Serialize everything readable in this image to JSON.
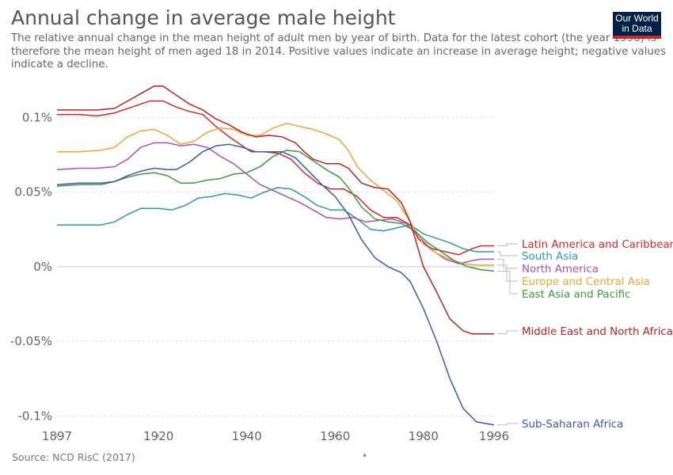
{
  "header": {
    "title": "Annual change in average male height",
    "subtitle": "The relative annual change in the mean height of adult men by year of birth. Data for the latest cohort (the year 1996) is therefore the mean height of men aged 18 in 2014. Positive values indicate an increase in average height; negative values indicate a decline.",
    "logo_text_1": "Our World",
    "logo_text_2": "in Data"
  },
  "footer": {
    "source": "Source: NCD RisC (2017)",
    "dot": "•"
  },
  "colors": {
    "logo_bg": "#002147",
    "logo_accent": "#ce261e"
  },
  "chart_data": {
    "type": "line",
    "title": "Annual change in average male height",
    "xlabel": "",
    "ylabel": "",
    "xlim": [
      1897,
      1996
    ],
    "ylim": [
      -0.112,
      0.123
    ],
    "x_ticks": [
      1897,
      1920,
      1940,
      1960,
      1980,
      1996
    ],
    "y_ticks": [
      {
        "value": 0.1,
        "label": "0.1%"
      },
      {
        "value": 0.05,
        "label": "0.05%"
      },
      {
        "value": 0,
        "label": "0%"
      },
      {
        "value": -0.05,
        "label": "-0.05%"
      },
      {
        "value": -0.1,
        "label": "-0.1%"
      }
    ],
    "grid": true,
    "legend": "right, direct labels",
    "series": [
      {
        "name": "Latin America and Caribbean",
        "color": "#d62728",
        "points": [
          [
            1897,
            0.102
          ],
          [
            1902,
            0.102
          ],
          [
            1906,
            0.101
          ],
          [
            1910,
            0.103
          ],
          [
            1915,
            0.108
          ],
          [
            1918,
            0.111
          ],
          [
            1921,
            0.111
          ],
          [
            1924,
            0.107
          ],
          [
            1927,
            0.104
          ],
          [
            1930,
            0.102
          ],
          [
            1933,
            0.094
          ],
          [
            1936,
            0.087
          ],
          [
            1939,
            0.081
          ],
          [
            1941,
            0.077
          ],
          [
            1944,
            0.077
          ],
          [
            1947,
            0.076
          ],
          [
            1950,
            0.072
          ],
          [
            1953,
            0.063
          ],
          [
            1956,
            0.056
          ],
          [
            1959,
            0.052
          ],
          [
            1962,
            0.052
          ],
          [
            1965,
            0.047
          ],
          [
            1968,
            0.038
          ],
          [
            1971,
            0.033
          ],
          [
            1974,
            0.033
          ],
          [
            1977,
            0.028
          ],
          [
            1979,
            0.018
          ],
          [
            1982,
            0.012
          ],
          [
            1985,
            0.01
          ],
          [
            1988,
            0.008
          ],
          [
            1991,
            0.012
          ],
          [
            1993,
            0.014
          ],
          [
            1996,
            0.014
          ]
        ]
      },
      {
        "name": "South Asia",
        "color": "#2a9d97",
        "points": [
          [
            1897,
            0.028
          ],
          [
            1902,
            0.028
          ],
          [
            1907,
            0.028
          ],
          [
            1910,
            0.03
          ],
          [
            1913,
            0.035
          ],
          [
            1916,
            0.039
          ],
          [
            1920,
            0.039
          ],
          [
            1923,
            0.038
          ],
          [
            1926,
            0.041
          ],
          [
            1929,
            0.046
          ],
          [
            1932,
            0.047
          ],
          [
            1935,
            0.049
          ],
          [
            1938,
            0.048
          ],
          [
            1941,
            0.046
          ],
          [
            1944,
            0.05
          ],
          [
            1947,
            0.053
          ],
          [
            1950,
            0.052
          ],
          [
            1953,
            0.047
          ],
          [
            1956,
            0.041
          ],
          [
            1959,
            0.038
          ],
          [
            1962,
            0.038
          ],
          [
            1965,
            0.032
          ],
          [
            1968,
            0.025
          ],
          [
            1971,
            0.024
          ],
          [
            1974,
            0.026
          ],
          [
            1977,
            0.028
          ],
          [
            1980,
            0.022
          ],
          [
            1983,
            0.019
          ],
          [
            1986,
            0.016
          ],
          [
            1989,
            0.012
          ],
          [
            1992,
            0.01
          ],
          [
            1996,
            0.01
          ]
        ]
      },
      {
        "name": "North America",
        "color": "#a652ba",
        "points": [
          [
            1897,
            0.065
          ],
          [
            1902,
            0.066
          ],
          [
            1906,
            0.066
          ],
          [
            1910,
            0.067
          ],
          [
            1913,
            0.072
          ],
          [
            1916,
            0.08
          ],
          [
            1919,
            0.083
          ],
          [
            1922,
            0.083
          ],
          [
            1925,
            0.081
          ],
          [
            1928,
            0.082
          ],
          [
            1931,
            0.08
          ],
          [
            1934,
            0.074
          ],
          [
            1937,
            0.069
          ],
          [
            1940,
            0.062
          ],
          [
            1943,
            0.055
          ],
          [
            1946,
            0.051
          ],
          [
            1949,
            0.047
          ],
          [
            1952,
            0.043
          ],
          [
            1955,
            0.038
          ],
          [
            1958,
            0.033
          ],
          [
            1961,
            0.032
          ],
          [
            1964,
            0.033
          ],
          [
            1967,
            0.03
          ],
          [
            1970,
            0.031
          ],
          [
            1973,
            0.032
          ],
          [
            1976,
            0.029
          ],
          [
            1979,
            0.02
          ],
          [
            1982,
            0.011
          ],
          [
            1985,
            0.005
          ],
          [
            1988,
            0.002
          ],
          [
            1991,
            0.004
          ],
          [
            1993,
            0.005
          ],
          [
            1996,
            0.005
          ]
        ]
      },
      {
        "name": "Europe and Central Asia",
        "color": "#f0a32f",
        "points": [
          [
            1897,
            0.077
          ],
          [
            1902,
            0.077
          ],
          [
            1907,
            0.078
          ],
          [
            1910,
            0.08
          ],
          [
            1913,
            0.087
          ],
          [
            1916,
            0.091
          ],
          [
            1919,
            0.092
          ],
          [
            1922,
            0.088
          ],
          [
            1925,
            0.082
          ],
          [
            1928,
            0.084
          ],
          [
            1931,
            0.09
          ],
          [
            1934,
            0.093
          ],
          [
            1937,
            0.092
          ],
          [
            1940,
            0.088
          ],
          [
            1943,
            0.088
          ],
          [
            1946,
            0.093
          ],
          [
            1949,
            0.096
          ],
          [
            1952,
            0.094
          ],
          [
            1955,
            0.092
          ],
          [
            1958,
            0.089
          ],
          [
            1961,
            0.085
          ],
          [
            1963,
            0.078
          ],
          [
            1965,
            0.067
          ],
          [
            1968,
            0.058
          ],
          [
            1971,
            0.051
          ],
          [
            1974,
            0.044
          ],
          [
            1977,
            0.03
          ],
          [
            1980,
            0.015
          ],
          [
            1983,
            0.009
          ],
          [
            1986,
            0.005
          ],
          [
            1989,
            0.002
          ],
          [
            1992,
            0.001
          ],
          [
            1996,
            0.001
          ]
        ]
      },
      {
        "name": "East Asia and Pacific",
        "color": "#3d9a3d",
        "points": [
          [
            1897,
            0.054
          ],
          [
            1902,
            0.055
          ],
          [
            1907,
            0.055
          ],
          [
            1910,
            0.057
          ],
          [
            1913,
            0.06
          ],
          [
            1916,
            0.062
          ],
          [
            1919,
            0.063
          ],
          [
            1922,
            0.061
          ],
          [
            1925,
            0.056
          ],
          [
            1928,
            0.056
          ],
          [
            1931,
            0.058
          ],
          [
            1934,
            0.059
          ],
          [
            1937,
            0.062
          ],
          [
            1940,
            0.063
          ],
          [
            1943,
            0.067
          ],
          [
            1946,
            0.074
          ],
          [
            1949,
            0.078
          ],
          [
            1952,
            0.077
          ],
          [
            1955,
            0.071
          ],
          [
            1958,
            0.065
          ],
          [
            1961,
            0.06
          ],
          [
            1963,
            0.053
          ],
          [
            1966,
            0.04
          ],
          [
            1969,
            0.032
          ],
          [
            1972,
            0.03
          ],
          [
            1975,
            0.029
          ],
          [
            1978,
            0.024
          ],
          [
            1981,
            0.016
          ],
          [
            1984,
            0.01
          ],
          [
            1987,
            0.004
          ],
          [
            1990,
            0.0
          ],
          [
            1993,
            -0.002
          ],
          [
            1996,
            -0.003
          ]
        ]
      },
      {
        "name": "Middle East and North Africa",
        "color": "#b92323",
        "points": [
          [
            1897,
            0.105
          ],
          [
            1902,
            0.105
          ],
          [
            1906,
            0.105
          ],
          [
            1910,
            0.106
          ],
          [
            1913,
            0.111
          ],
          [
            1916,
            0.116
          ],
          [
            1919,
            0.121
          ],
          [
            1921,
            0.121
          ],
          [
            1924,
            0.115
          ],
          [
            1927,
            0.109
          ],
          [
            1930,
            0.105
          ],
          [
            1933,
            0.099
          ],
          [
            1936,
            0.095
          ],
          [
            1939,
            0.09
          ],
          [
            1942,
            0.087
          ],
          [
            1945,
            0.088
          ],
          [
            1948,
            0.087
          ],
          [
            1951,
            0.083
          ],
          [
            1953,
            0.077
          ],
          [
            1955,
            0.072
          ],
          [
            1958,
            0.069
          ],
          [
            1961,
            0.069
          ],
          [
            1963,
            0.066
          ],
          [
            1966,
            0.056
          ],
          [
            1969,
            0.053
          ],
          [
            1972,
            0.052
          ],
          [
            1975,
            0.043
          ],
          [
            1977,
            0.03
          ],
          [
            1980,
            0.0
          ],
          [
            1983,
            -0.017
          ],
          [
            1986,
            -0.035
          ],
          [
            1989,
            -0.043
          ],
          [
            1991,
            -0.045
          ],
          [
            1996,
            -0.045
          ]
        ]
      },
      {
        "name": "Sub-Saharan Africa",
        "color": "#3b5ba5",
        "points": [
          [
            1897,
            0.055
          ],
          [
            1902,
            0.056
          ],
          [
            1907,
            0.056
          ],
          [
            1910,
            0.057
          ],
          [
            1913,
            0.061
          ],
          [
            1916,
            0.064
          ],
          [
            1919,
            0.066
          ],
          [
            1922,
            0.065
          ],
          [
            1924,
            0.065
          ],
          [
            1927,
            0.07
          ],
          [
            1930,
            0.077
          ],
          [
            1933,
            0.081
          ],
          [
            1936,
            0.082
          ],
          [
            1939,
            0.08
          ],
          [
            1942,
            0.077
          ],
          [
            1945,
            0.077
          ],
          [
            1948,
            0.077
          ],
          [
            1951,
            0.073
          ],
          [
            1954,
            0.064
          ],
          [
            1957,
            0.055
          ],
          [
            1960,
            0.047
          ],
          [
            1963,
            0.035
          ],
          [
            1966,
            0.018
          ],
          [
            1969,
            0.006
          ],
          [
            1972,
            0.0
          ],
          [
            1975,
            -0.004
          ],
          [
            1977,
            -0.01
          ],
          [
            1980,
            -0.028
          ],
          [
            1983,
            -0.05
          ],
          [
            1986,
            -0.075
          ],
          [
            1989,
            -0.095
          ],
          [
            1992,
            -0.104
          ],
          [
            1996,
            -0.106
          ]
        ]
      }
    ]
  }
}
